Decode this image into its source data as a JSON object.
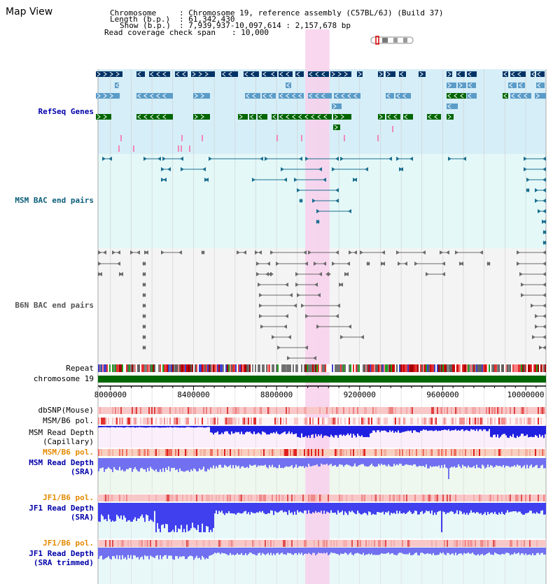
{
  "header": {
    "title": "Map View",
    "chromosome_label": "Chromosome",
    "chromosome_value": ": Chromosome 19, reference assembly (C57BL/6J) (Build 37)",
    "length_label": "Length (b.p.)",
    "length_value": ": 61,342,430",
    "show_label": "Show (b.p.)",
    "show_value": ": 7,939,937-10,097,614 : 2,157,678 bp",
    "coverage_label": "Read coverage check span",
    "coverage_value": ": 10,000"
  },
  "tracks": {
    "refseq": "RefSeq Genes",
    "msm_bac": "MSM BAC end pairs",
    "b6n_bac": "B6N BAC end pairs",
    "repeat": "Repeat",
    "chromosome": "chromosome 19",
    "dbsnp": "dbSNP(Mouse)",
    "msm_b6_pol_1": "MSM/B6 pol.",
    "msm_depth_cap_1": "MSM Read Depth",
    "msm_depth_cap_2": "(Capillary)",
    "msm_b6_pol_2": "MSM/B6 pol.",
    "msm_depth_sra_1": "MSM Read Depth",
    "msm_depth_sra_2": "(SRA)",
    "jf1_b6_pol_1": "JF1/B6 pol.",
    "jf1_depth_sra_1": "JF1 Read Depth",
    "jf1_depth_sra_2": "(SRA)",
    "jf1_b6_pol_2": "JF1/B6 pol.",
    "jf1_depth_trim_1": "JF1 Read Depth",
    "jf1_depth_trim_2": "(SRA trimmed)"
  },
  "axis": {
    "ticks": [
      "8000000",
      "8400000",
      "8800000",
      "9200000",
      "9600000",
      "10000000"
    ],
    "tick_values": [
      8000000,
      8400000,
      8800000,
      9200000,
      9600000,
      10000000
    ],
    "start": 7939937,
    "end": 10097614,
    "highlight_start": 8938000,
    "highlight_end": 9055000
  },
  "colors": {
    "refseq_bg": "#d6eef8",
    "msm_bg": "#e4f8f8",
    "b6n_bg": "#f4f4f4",
    "highlight": "#f8d0ec",
    "refseq_dark": "#003366",
    "refseq_mid": "#5b9cc8",
    "refseq_green": "#006600",
    "msm_track": "#1a6e8e",
    "b6n_track": "#6a6a6a",
    "chromosome": "#006600",
    "label_blue": "#0000aa",
    "label_teal": "#0a5d7a",
    "label_orange": "#e58a00",
    "label_gray": "#555555"
  }
}
